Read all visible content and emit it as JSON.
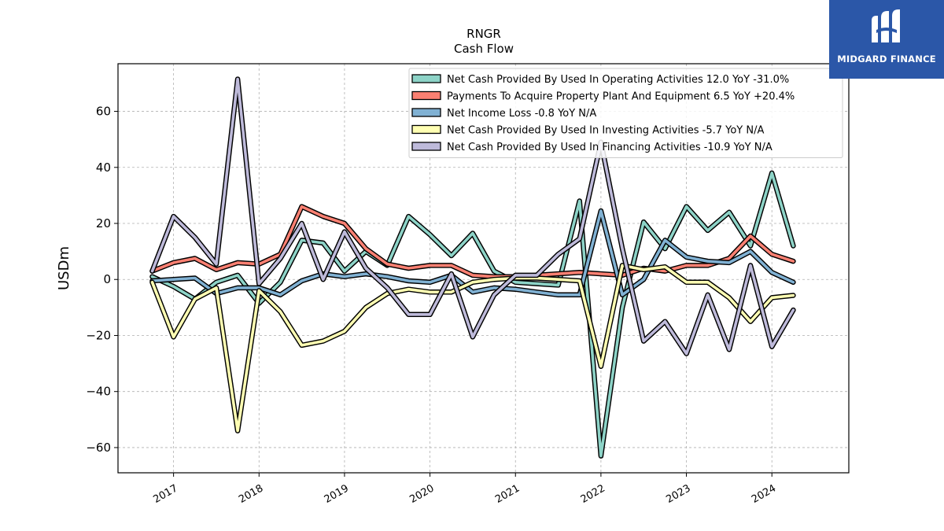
{
  "logo": {
    "text": "MIDGARD FINANCE",
    "icon": "midgard-logo-icon",
    "color": "#2b57a8"
  },
  "chart_data": {
    "type": "line",
    "title": "RNGR",
    "subtitle": "Cash Flow",
    "ylabel": "USDm",
    "xlabel": "",
    "ylim": [
      -69,
      77
    ],
    "xlim": [
      2016.35,
      2024.9
    ],
    "yticks": [
      -60,
      -40,
      -20,
      0,
      20,
      40,
      60
    ],
    "yticklabels": [
      "−60",
      "−40",
      "−20",
      "0",
      "20",
      "40",
      "60"
    ],
    "xticks": [
      2017,
      2018,
      2019,
      2020,
      2021,
      2022,
      2023,
      2024
    ],
    "xticklabels": [
      "2017",
      "2018",
      "2019",
      "2020",
      "2021",
      "2022",
      "2023",
      "2024"
    ],
    "grid": true,
    "legend_position": "top-right",
    "x": [
      2016.75,
      2017.0,
      2017.25,
      2017.5,
      2017.75,
      2018.0,
      2018.25,
      2018.5,
      2018.75,
      2019.0,
      2019.25,
      2019.5,
      2019.75,
      2020.0,
      2020.25,
      2020.5,
      2020.75,
      2021.0,
      2021.25,
      2021.5,
      2021.75,
      2022.0,
      2022.25,
      2022.5,
      2022.75,
      2023.0,
      2023.25,
      2023.5,
      2023.75,
      2024.0,
      2024.25
    ],
    "series": [
      {
        "name": "Net Cash Provided By Used In Operating Activities  12.0 YoY -31.0%",
        "color": "#8dd3c7",
        "values": [
          1.0,
          -2.5,
          -7.0,
          -1.0,
          1.5,
          -8.5,
          -1.0,
          14.0,
          13.0,
          3.0,
          10.0,
          5.0,
          22.5,
          16.0,
          8.5,
          16.5,
          3.0,
          -1.0,
          -1.5,
          -2.0,
          28.0,
          -63.0,
          -10.0,
          20.5,
          11.0,
          26.0,
          17.5,
          24.0,
          12.0,
          38.0,
          12.0
        ]
      },
      {
        "name": "Payments To Acquire Property Plant And Equipment  6.5 YoY +20.4%",
        "color": "#fb8072",
        "values": [
          3.0,
          6.0,
          7.5,
          3.5,
          6.0,
          5.5,
          9.0,
          26.0,
          22.5,
          20.0,
          11.0,
          5.5,
          4.0,
          5.0,
          5.0,
          1.5,
          1.0,
          1.0,
          1.5,
          2.0,
          2.5,
          2.0,
          1.5,
          4.0,
          3.0,
          5.0,
          5.0,
          7.5,
          15.5,
          9.0,
          6.5
        ]
      },
      {
        "name": "Net Income Loss  -0.8 YoY N/A",
        "color": "#80b1d3",
        "values": [
          -0.5,
          0.0,
          0.5,
          -5.0,
          -3.0,
          -3.0,
          -5.5,
          -0.5,
          2.0,
          1.0,
          2.0,
          1.0,
          -0.5,
          -1.0,
          1.5,
          -4.5,
          -3.0,
          -3.5,
          -4.5,
          -5.5,
          -5.5,
          24.5,
          -5.5,
          0.0,
          14.0,
          8.0,
          6.5,
          6.0,
          10.0,
          2.5,
          -1.0
        ]
      },
      {
        "name": "Net Cash Provided By Used In Investing Activities  -5.7 YoY N/A",
        "color": "#ffffb3",
        "values": [
          -1.0,
          -20.5,
          -7.0,
          -3.0,
          -54.0,
          -4.0,
          -11.5,
          -23.5,
          -22.0,
          -18.5,
          -10.0,
          -5.0,
          -3.5,
          -4.5,
          -4.5,
          -1.0,
          0.0,
          0.5,
          0.5,
          0.0,
          -0.5,
          -31.0,
          5.0,
          3.5,
          4.5,
          -1.0,
          -1.0,
          -6.5,
          -15.0,
          -6.5,
          -5.7
        ]
      },
      {
        "name": "Net Cash Provided By Used In Financing Activities  -10.9 YoY N/A",
        "color": "#bebada",
        "values": [
          3.0,
          22.5,
          15.0,
          5.5,
          71.5,
          -1.5,
          7.5,
          20.0,
          0.0,
          17.0,
          4.0,
          -3.0,
          -12.5,
          -12.5,
          2.0,
          -20.5,
          -5.5,
          1.5,
          1.5,
          9.0,
          14.5,
          49.0,
          11.0,
          -22.0,
          -15.0,
          -26.5,
          -5.5,
          -25.0,
          5.0,
          -24.0,
          -10.9
        ]
      }
    ]
  }
}
